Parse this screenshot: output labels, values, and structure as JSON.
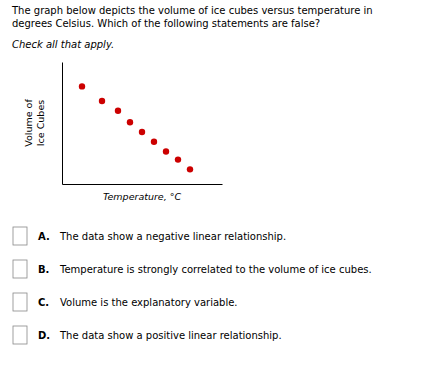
{
  "chart_data": {
    "type": "scatter",
    "title": "The graph below depicts the volume of ice cubes versus temperature in\ndegrees Celsius. Which of the following statements are false?",
    "subtitle": "Check all that apply.",
    "xlabel": "Temperature, °C",
    "ylabel": "Volume of\nIce Cubes",
    "x": [
      1.0,
      1.5,
      1.9,
      2.2,
      2.5,
      2.8,
      3.1,
      3.4,
      3.7
    ],
    "values": [
      8.5,
      7.6,
      7.0,
      6.3,
      5.7,
      5.1,
      4.5,
      4.0,
      3.4
    ],
    "color": "#cc0000",
    "xlim": [
      0.5,
      4.5
    ],
    "ylim": [
      2.5,
      10.0
    ],
    "xticks": [],
    "yticks": [],
    "tick_labels": false,
    "annotations": [
      {
        "label": "A.",
        "text": "The data show a negative linear relationship."
      },
      {
        "label": "B.",
        "text": "Temperature is strongly correlated to the volume of ice cubes."
      },
      {
        "label": "C.",
        "text": "Volume is the explanatory variable."
      },
      {
        "label": "D.",
        "text": "The data show a positive linear relationship."
      }
    ]
  }
}
